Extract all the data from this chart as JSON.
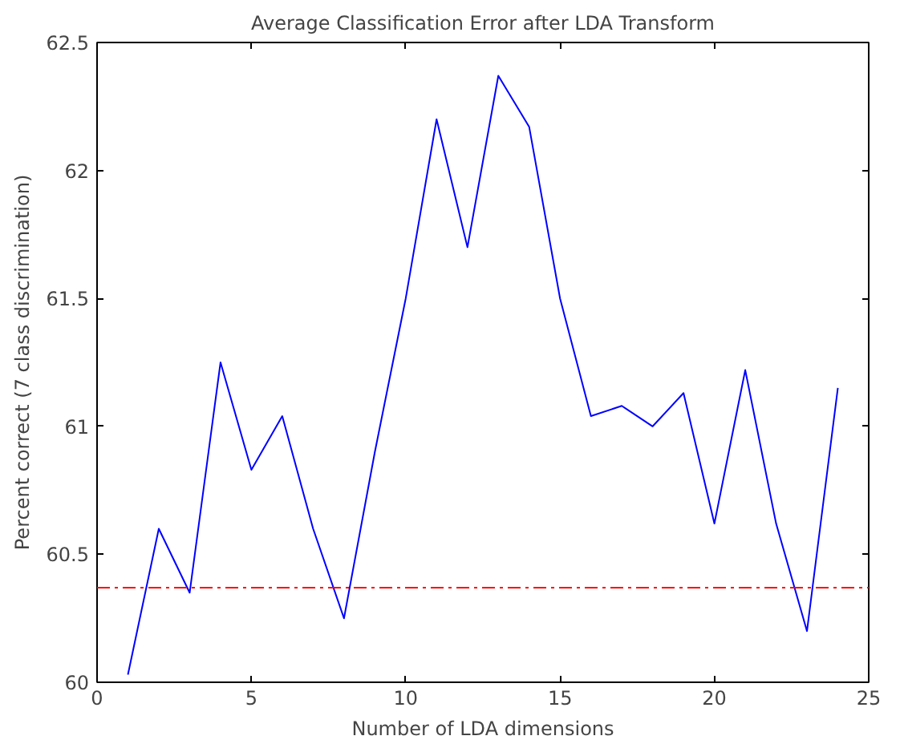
{
  "chart_data": {
    "type": "line",
    "title": "Average Classification Error after LDA Transform",
    "xlabel": "Number of LDA dimensions",
    "ylabel": "Percent correct (7 class discrimination)",
    "x": [
      1,
      2,
      3,
      4,
      5,
      6,
      7,
      8,
      9,
      10,
      11,
      12,
      13,
      14,
      15,
      16,
      17,
      18,
      19,
      20,
      21,
      22,
      23,
      24
    ],
    "series": [
      {
        "color": "#0000ff",
        "values": [
          60.03,
          60.6,
          60.35,
          61.25,
          60.83,
          61.04,
          60.6,
          60.25,
          60.9,
          61.5,
          62.2,
          61.7,
          62.37,
          62.17,
          61.5,
          61.04,
          61.08,
          61.0,
          61.13,
          60.62,
          61.22,
          60.62,
          60.2,
          61.15
        ]
      }
    ],
    "ref_lines": [
      {
        "axis": "y",
        "value": 60.37,
        "color": "#ff0000",
        "line_style": "dashed"
      }
    ],
    "xlim": [
      0,
      25
    ],
    "xticks": [
      0,
      5,
      10,
      15,
      20,
      25
    ],
    "ylim": [
      60,
      62.5
    ],
    "yticks": [
      60,
      60.5,
      61,
      61.5,
      62,
      62.5
    ],
    "grid": false,
    "marker": "none",
    "line_style": "solid"
  }
}
